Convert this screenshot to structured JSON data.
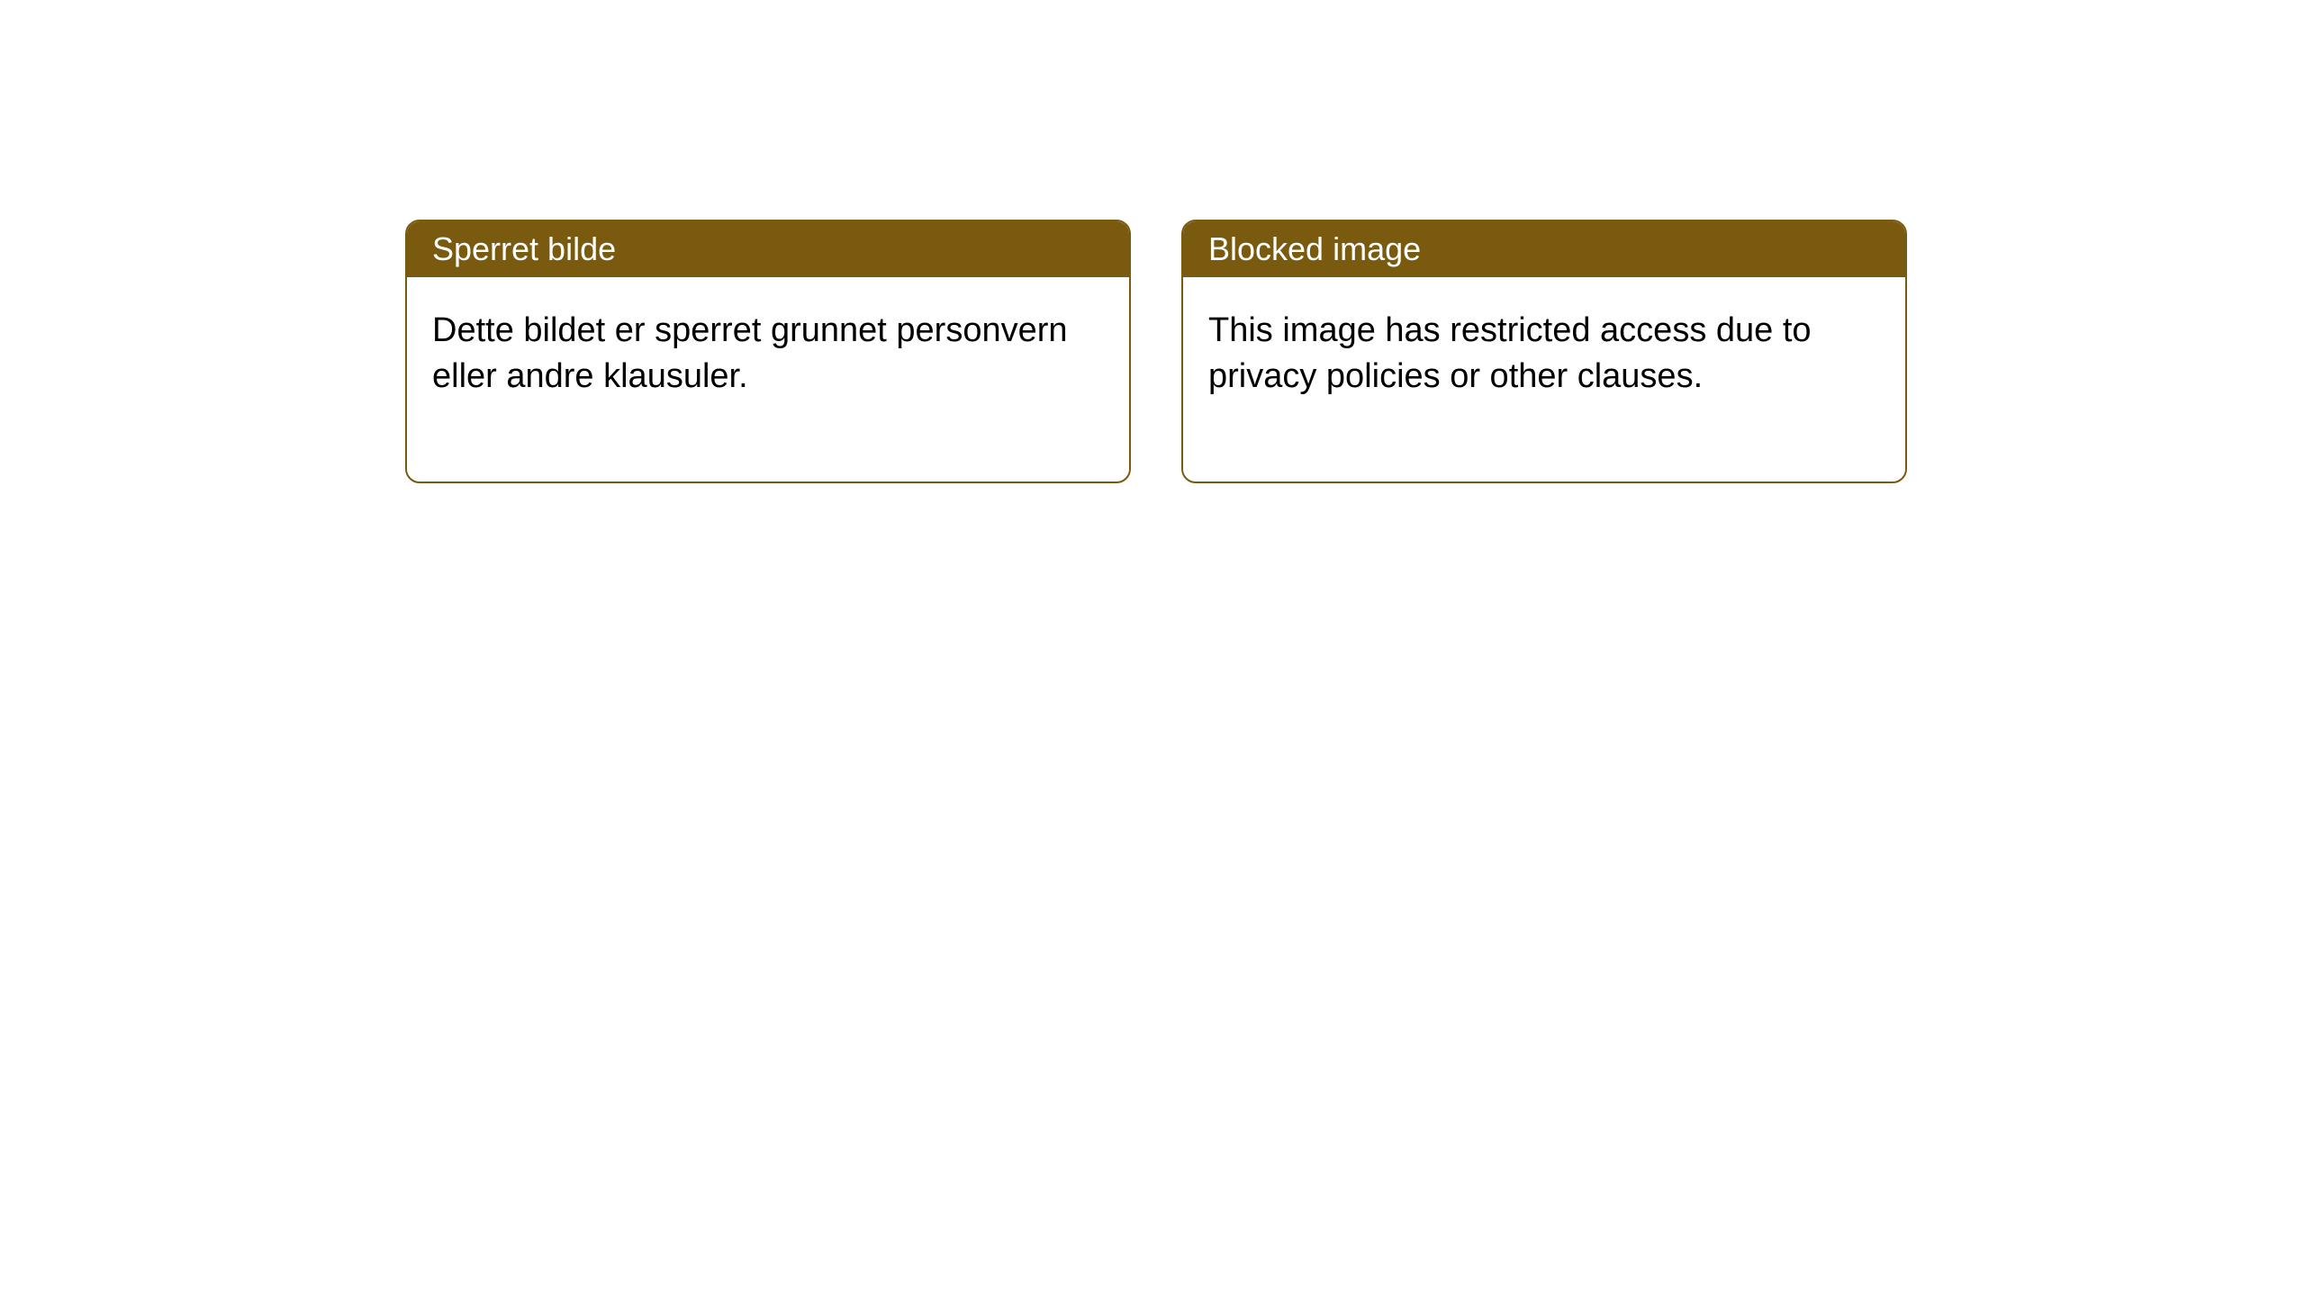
{
  "layout": {
    "background_color": "#ffffff",
    "card_border_color": "#7a5a0e",
    "card_border_width": 2,
    "card_border_radius": 16,
    "header_background_color": "#7a5a0e",
    "header_text_color": "#ffffff",
    "body_text_color": "#000000",
    "header_fontsize": 36,
    "body_fontsize": 38
  },
  "cards": {
    "norwegian": {
      "title": "Sperret bilde",
      "body": "Dette bildet er sperret grunnet personvern eller andre klausuler."
    },
    "english": {
      "title": "Blocked image",
      "body": "This image has restricted access due to privacy policies or other clauses."
    }
  }
}
